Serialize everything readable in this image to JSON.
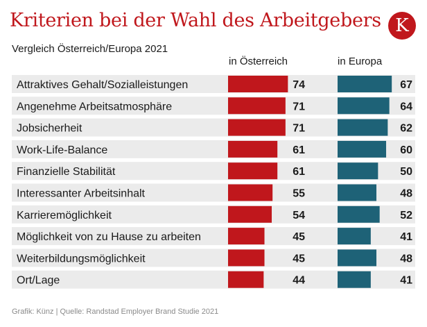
{
  "header": {
    "title": "Kriterien bei der Wahl des Arbeitgebers",
    "logo_letter": "K",
    "subtitle": "Vergleich Österreich/Europa 2021"
  },
  "columns": {
    "austria_label": "in Österreich",
    "europe_label": "in Europa"
  },
  "footer": {
    "source": "Grafik: Künz | Quelle: Randstad Employer Brand Studie 2021"
  },
  "colors": {
    "austria": "#c0171c",
    "europe": "#1e6277",
    "row_band": "#ebebeb",
    "title": "#c0171c"
  },
  "chart_data": {
    "type": "bar",
    "orientation": "horizontal",
    "categories": [
      "Attraktives Gehalt/Sozialleistungen",
      "Angenehme Arbeitsatmosphäre",
      "Jobsicherheit",
      "Work-Life-Balance",
      "Finanzielle Stabilität",
      "Interessanter Arbeitsinhalt",
      "Karrieremöglichkeit",
      "Möglichkeit von zu Hause zu arbeiten",
      "Weiterbildungsmöglichkeit",
      "Ort/Lage"
    ],
    "series": [
      {
        "name": "in Österreich",
        "values": [
          74,
          71,
          71,
          61,
          61,
          55,
          54,
          45,
          45,
          44
        ]
      },
      {
        "name": "in Europa",
        "values": [
          67,
          64,
          62,
          60,
          50,
          48,
          52,
          41,
          48,
          41
        ]
      }
    ],
    "xlim": [
      0,
      80
    ],
    "grid": false,
    "legend": "column headers above bars"
  }
}
